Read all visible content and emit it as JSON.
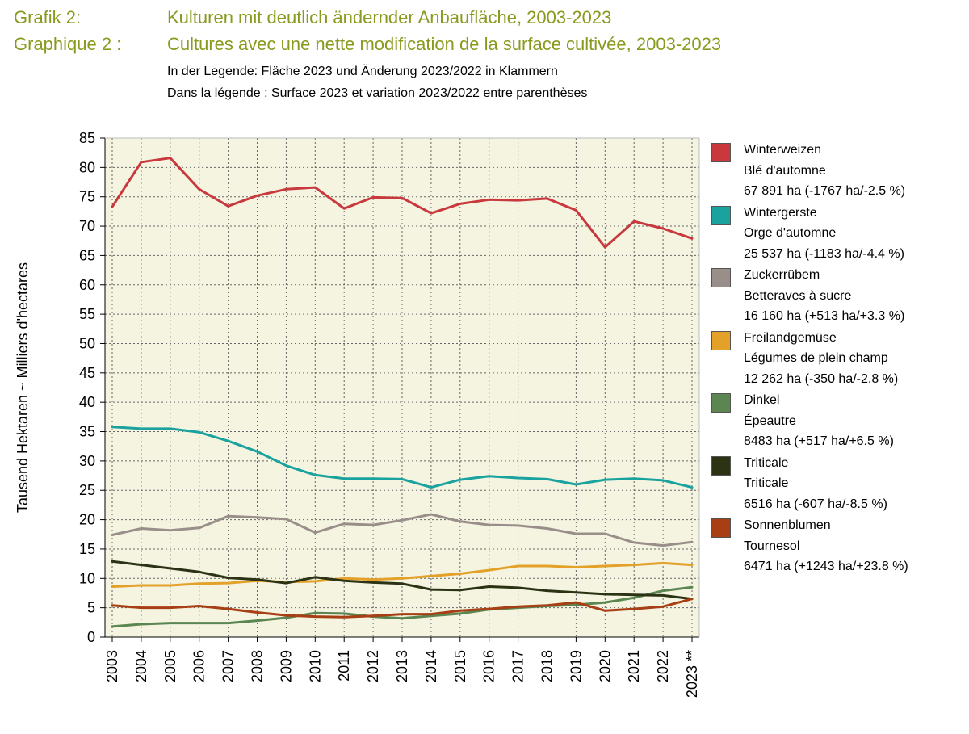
{
  "header": {
    "title_de_label": "Grafik 2:",
    "title_de": "Kulturen mit deutlich ändernder Anbaufläche, 2003-2023",
    "title_fr_label": "Graphique 2 :",
    "title_fr": "Cultures avec une nette modification de la surface cultivée, 2003-2023",
    "subtitle_de": "In der Legende: Fläche 2023 und Änderung 2023/2022 in Klammern",
    "subtitle_fr": "Dans la légende : Surface 2023 et variation 2023/2022 entre parenthèses"
  },
  "chart_data": {
    "type": "line",
    "ylabel": "Tausend Hektaren  ~  Milliers d'hectares",
    "xlabel": "",
    "ylim": [
      0,
      85
    ],
    "yticks": [
      0,
      5,
      10,
      15,
      20,
      25,
      30,
      35,
      40,
      45,
      50,
      55,
      60,
      65,
      70,
      75,
      80,
      85
    ],
    "categories": [
      "2003",
      "2004",
      "2005",
      "2006",
      "2007",
      "2008",
      "2009",
      "2010",
      "2011",
      "2012",
      "2013",
      "2014",
      "2015",
      "2016",
      "2017",
      "2018",
      "2019",
      "2020",
      "2021",
      "2022",
      "2023 **"
    ],
    "grid": true,
    "legend_position": "right",
    "plot_background": "#f4f4e0",
    "series": [
      {
        "name": "Winterweizen",
        "name_fr": "Blé d'automne",
        "summary": "67 891 ha (-1767 ha/-2.5 %)",
        "color": "#c8383c",
        "values": [
          73.3,
          80.9,
          81.6,
          76.3,
          73.4,
          75.2,
          76.3,
          76.6,
          73.0,
          74.9,
          74.8,
          72.2,
          73.8,
          74.5,
          74.4,
          74.7,
          72.7,
          66.4,
          70.8,
          69.6,
          67.9
        ]
      },
      {
        "name": "Wintergerste",
        "name_fr": "Orge d'automne",
        "summary": "25 537 ha (-1183 ha/-4.4 %)",
        "color": "#1aa39e",
        "values": [
          35.8,
          35.5,
          35.5,
          34.9,
          33.4,
          31.6,
          29.2,
          27.6,
          27.0,
          27.0,
          26.9,
          25.5,
          26.8,
          27.4,
          27.1,
          26.9,
          26.0,
          26.8,
          27.0,
          26.7,
          25.5
        ]
      },
      {
        "name": "Zuckerrübem",
        "name_fr": "Betteraves à sucre",
        "summary": "16 160 ha (+513 ha/+3.3 %)",
        "color": "#9a8e8a",
        "values": [
          17.4,
          18.5,
          18.2,
          18.6,
          20.6,
          20.4,
          20.1,
          17.8,
          19.3,
          19.1,
          19.9,
          20.9,
          19.7,
          19.1,
          19.0,
          18.5,
          17.6,
          17.6,
          16.1,
          15.6,
          16.2
        ]
      },
      {
        "name": "Freilandgemüse",
        "name_fr": "Légumes de plein champ",
        "summary": "12 262 ha (-350 ha/-2.8 %)",
        "color": "#e3a12a",
        "values": [
          8.6,
          8.8,
          8.8,
          9.1,
          9.2,
          9.6,
          9.4,
          9.5,
          10.0,
          9.8,
          10.0,
          10.4,
          10.8,
          11.4,
          12.1,
          12.1,
          11.9,
          12.1,
          12.3,
          12.6,
          12.3
        ]
      },
      {
        "name": "Dinkel",
        "name_fr": "Épeautre",
        "summary": "8483 ha (+517 ha/+6.5 %)",
        "color": "#5b8551",
        "values": [
          1.8,
          2.2,
          2.4,
          2.4,
          2.4,
          2.8,
          3.3,
          4.1,
          4.0,
          3.5,
          3.2,
          3.6,
          4.0,
          4.7,
          5.0,
          5.3,
          5.5,
          5.9,
          6.7,
          7.9,
          8.5
        ]
      },
      {
        "name": "Triticale",
        "name_fr": "Triticale",
        "summary": "6516 ha (-607 ha/-8.5 %)",
        "color": "#2c3214",
        "values": [
          12.9,
          12.3,
          11.7,
          11.1,
          10.1,
          9.8,
          9.2,
          10.2,
          9.6,
          9.3,
          9.1,
          8.1,
          8.0,
          8.6,
          8.4,
          7.9,
          7.6,
          7.3,
          7.2,
          7.1,
          6.5
        ]
      },
      {
        "name": "Sonnenblumen",
        "name_fr": "Tournesol",
        "summary": "6471 ha (+1243 ha/+23.8 %)",
        "color": "#a83e14",
        "values": [
          5.4,
          5.0,
          5.0,
          5.3,
          4.8,
          4.2,
          3.7,
          3.5,
          3.4,
          3.6,
          3.9,
          3.9,
          4.5,
          4.8,
          5.2,
          5.4,
          5.9,
          4.5,
          4.8,
          5.2,
          6.5
        ]
      }
    ]
  }
}
